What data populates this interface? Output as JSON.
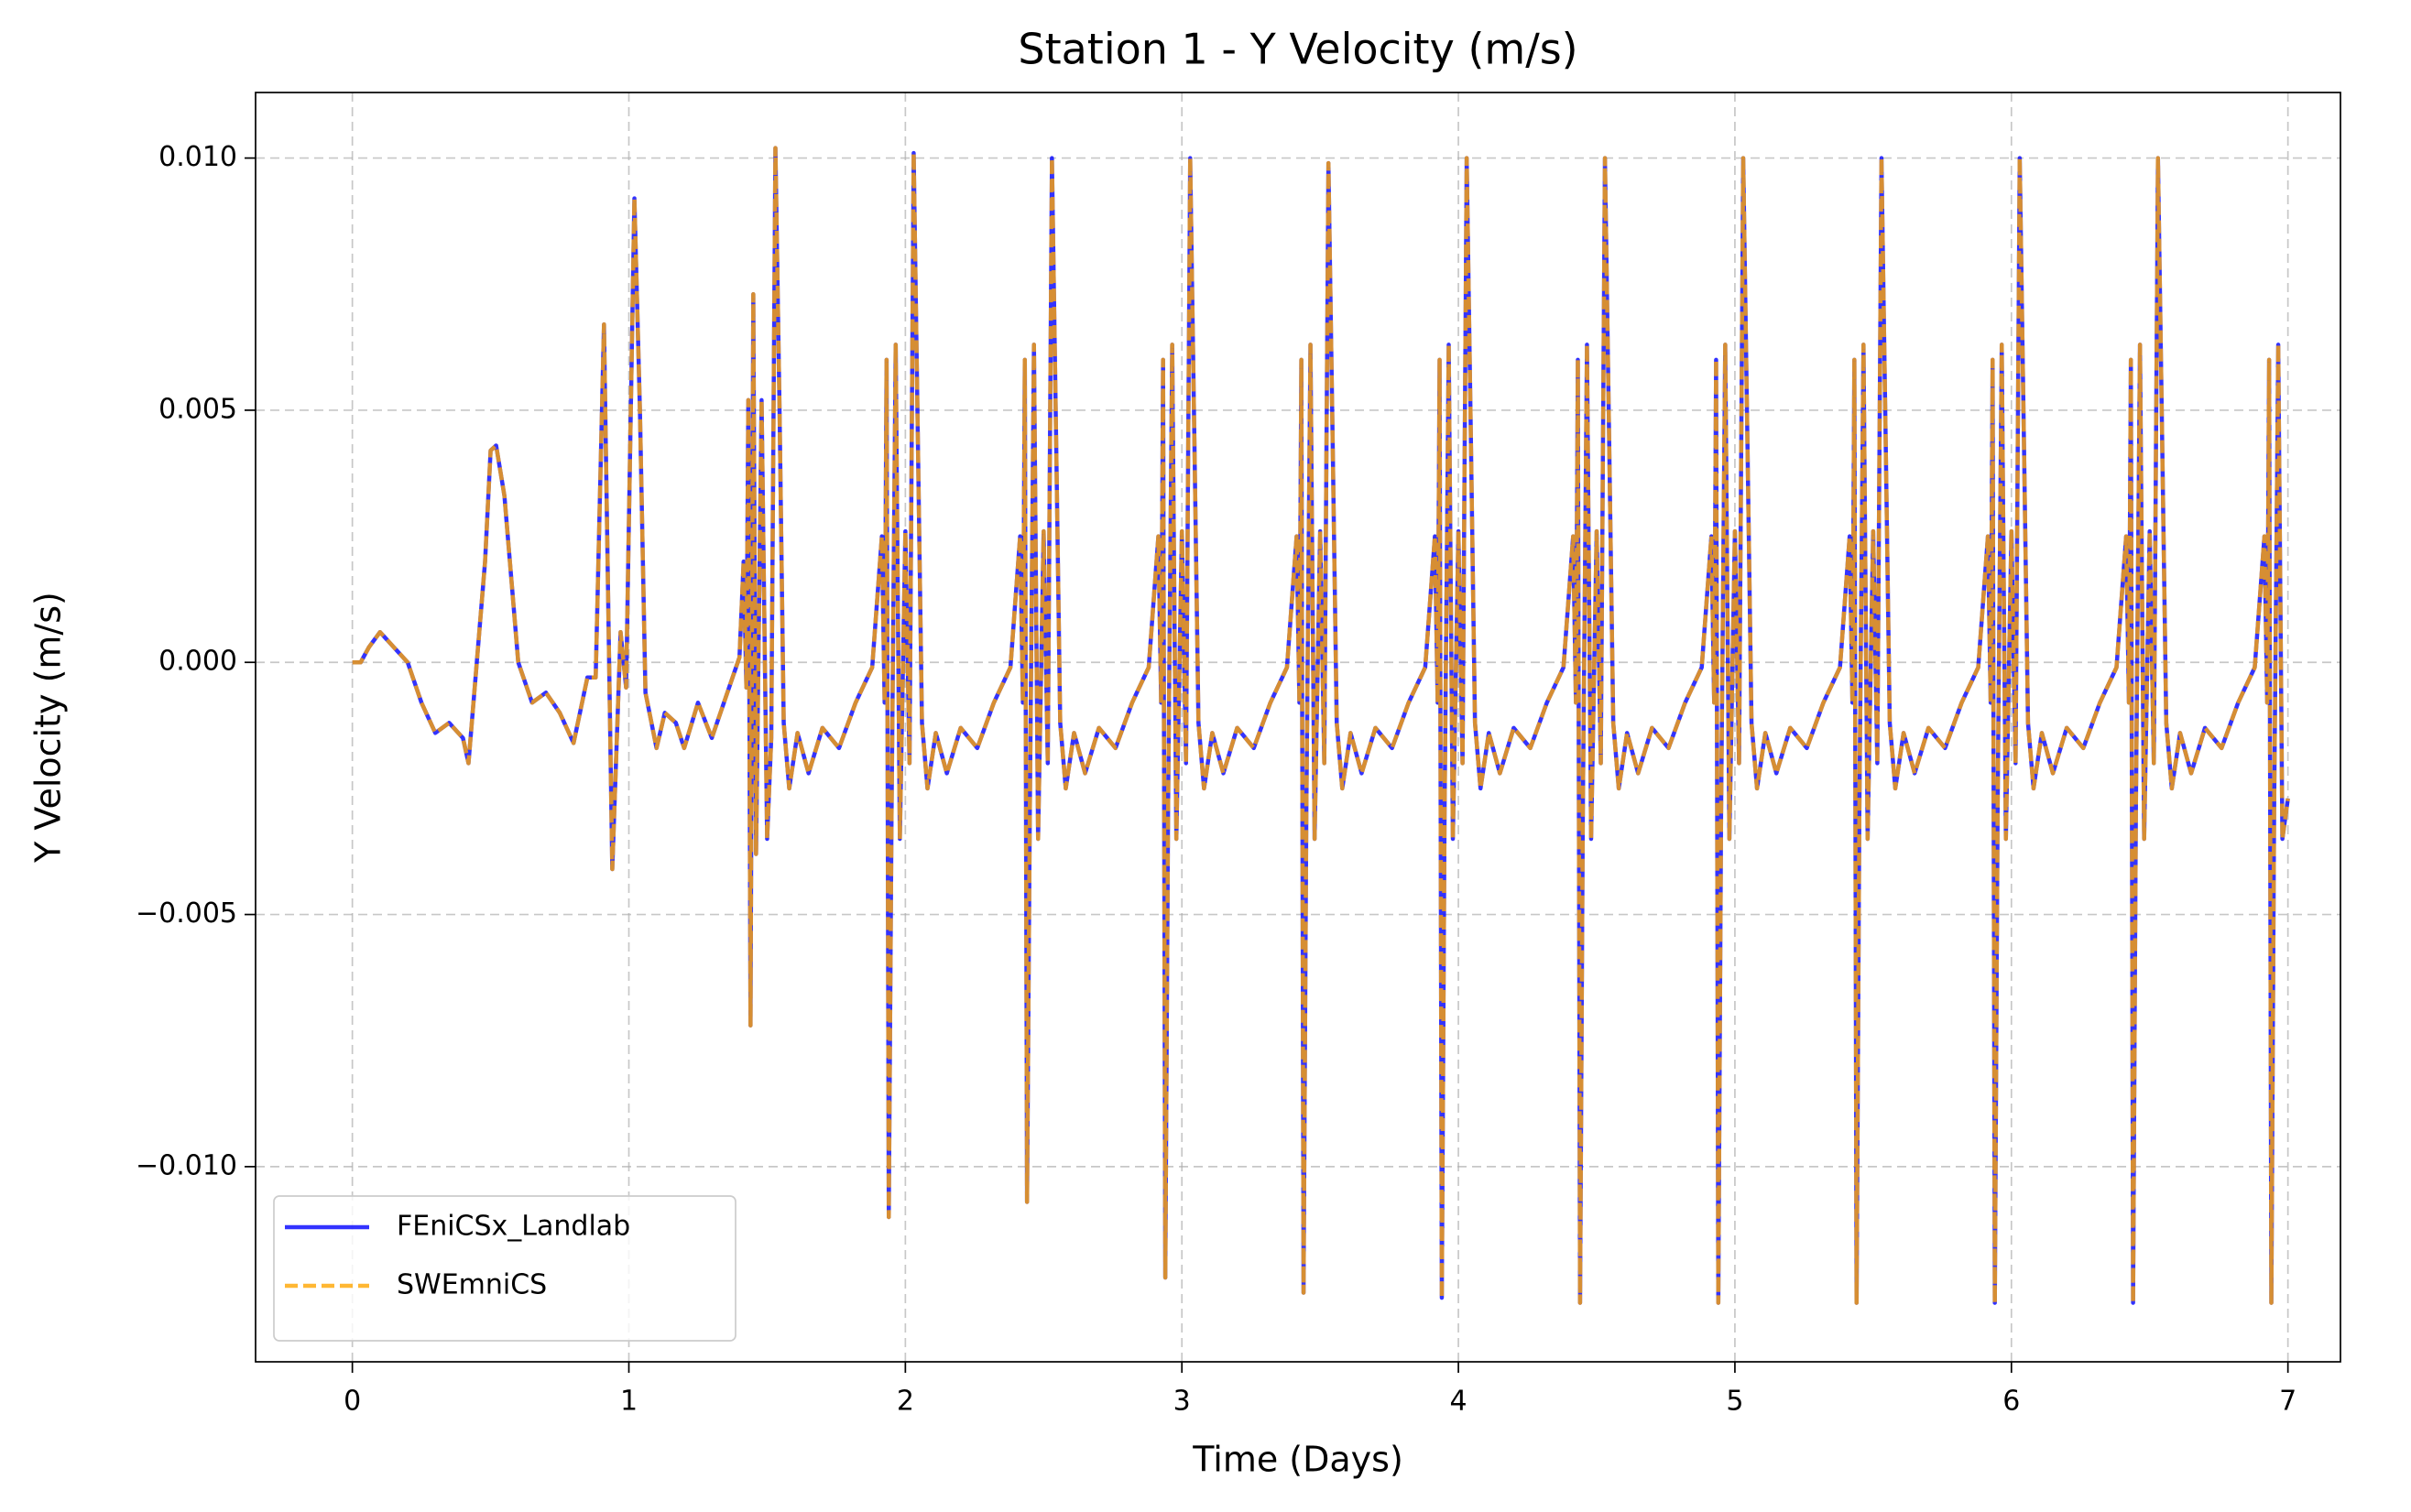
{
  "chart_data": {
    "type": "line",
    "title": "Station 1 - Y Velocity (m/s)",
    "x_label": "Time (Days)",
    "y_label": "Y Velocity (m/s)",
    "xlim": [
      -0.35,
      7.19
    ],
    "ylim": [
      -0.01387,
      0.0113
    ],
    "xticks": [
      0,
      1,
      2,
      3,
      4,
      5,
      6,
      7
    ],
    "yticks": [
      {
        "value": -0.01,
        "label": "−0.010"
      },
      {
        "value": -0.005,
        "label": "−0.005"
      },
      {
        "value": 0,
        "label": "0.000"
      },
      {
        "value": 0.005,
        "label": "0.005"
      },
      {
        "value": 0.01,
        "label": "0.010"
      }
    ],
    "grid": true,
    "legend": "lower left",
    "x": [
      0,
      0.03,
      0.06,
      0.1,
      0.15,
      0.2,
      0.25,
      0.3,
      0.35,
      0.4,
      0.42,
      0.45,
      0.48,
      0.5,
      0.52,
      0.55,
      0.6,
      0.65,
      0.7,
      0.75,
      0.8,
      0.85,
      0.88,
      0.91,
      0.94,
      0.97,
      0.99,
      1.02,
      1.04,
      1.06,
      1.1,
      1.13,
      1.17,
      1.2,
      1.25,
      1.3,
      1.35,
      1.4,
      1.415,
      1.425,
      1.432,
      1.44,
      1.45,
      1.46,
      1.48,
      1.5,
      1.515,
      1.53,
      1.545,
      1.56,
      1.58,
      1.61,
      1.65,
      1.7,
      1.76,
      1.82,
      1.88,
      1.915,
      1.925,
      1.932,
      1.94,
      1.95,
      1.965,
      1.98,
      2.0,
      2.015,
      2.03,
      2.045,
      2.06,
      2.08,
      2.11,
      2.15,
      2.2,
      2.26,
      2.32,
      2.38,
      2.415,
      2.425,
      2.432,
      2.44,
      2.45,
      2.465,
      2.48,
      2.5,
      2.515,
      2.53,
      2.545,
      2.56,
      2.58,
      2.61,
      2.65,
      2.7,
      2.76,
      2.82,
      2.88,
      2.915,
      2.925,
      2.932,
      2.94,
      2.95,
      2.965,
      2.98,
      3.0,
      3.015,
      3.03,
      3.045,
      3.06,
      3.08,
      3.11,
      3.15,
      3.2,
      3.26,
      3.32,
      3.38,
      3.415,
      3.425,
      3.432,
      3.44,
      3.45,
      3.465,
      3.48,
      3.5,
      3.515,
      3.53,
      3.545,
      3.56,
      3.58,
      3.61,
      3.65,
      3.7,
      3.76,
      3.82,
      3.88,
      3.915,
      3.925,
      3.932,
      3.94,
      3.95,
      3.965,
      3.98,
      4.0,
      4.015,
      4.03,
      4.045,
      4.06,
      4.08,
      4.11,
      4.15,
      4.2,
      4.26,
      4.32,
      4.38,
      4.415,
      4.425,
      4.432,
      4.44,
      4.45,
      4.465,
      4.48,
      4.5,
      4.515,
      4.53,
      4.545,
      4.56,
      4.58,
      4.61,
      4.65,
      4.7,
      4.76,
      4.82,
      4.88,
      4.915,
      4.925,
      4.932,
      4.94,
      4.95,
      4.965,
      4.98,
      5.0,
      5.015,
      5.03,
      5.045,
      5.06,
      5.08,
      5.11,
      5.15,
      5.2,
      5.26,
      5.32,
      5.38,
      5.415,
      5.425,
      5.432,
      5.44,
      5.45,
      5.465,
      5.48,
      5.5,
      5.515,
      5.53,
      5.545,
      5.56,
      5.58,
      5.61,
      5.65,
      5.7,
      5.76,
      5.82,
      5.88,
      5.915,
      5.925,
      5.932,
      5.94,
      5.95,
      5.965,
      5.98,
      6.0,
      6.015,
      6.03,
      6.045,
      6.06,
      6.08,
      6.11,
      6.15,
      6.2,
      6.26,
      6.32,
      6.38,
      6.415,
      6.425,
      6.432,
      6.44,
      6.45,
      6.465,
      6.48,
      6.5,
      6.515,
      6.53,
      6.545,
      6.56,
      6.58,
      6.61,
      6.65,
      6.7,
      6.76,
      6.82,
      6.88,
      6.915,
      6.925,
      6.932,
      6.94,
      6.95,
      6.965,
      6.98,
      7.0
    ],
    "series": [
      {
        "name": "FEniCSx_Landlab",
        "color": "#0000ff",
        "linestyle": "solid",
        "values": [
          0,
          0,
          0.0003,
          0.0006,
          0.0003,
          0,
          -0.0008,
          -0.0014,
          -0.0012,
          -0.0015,
          -0.002,
          0,
          0.002,
          0.0042,
          0.0043,
          0.0033,
          0,
          -0.0008,
          -0.0006,
          -0.001,
          -0.0016,
          -0.0003,
          -0.0003,
          0.0067,
          -0.0041,
          0.0006,
          -0.0005,
          0.0092,
          0.005,
          -0.0006,
          -0.0017,
          -0.001,
          -0.0012,
          -0.0017,
          -0.0008,
          -0.0015,
          -0.0007,
          0.0001,
          0.002,
          -0.0005,
          0.0052,
          -0.0072,
          0.0073,
          -0.0038,
          0.0052,
          -0.0035,
          -0.0015,
          0.0102,
          0.005,
          -0.0012,
          -0.0025,
          -0.0014,
          -0.0022,
          -0.0013,
          -0.0017,
          -0.0008,
          -0.0001,
          0.0025,
          -0.0008,
          0.006,
          -0.011,
          -0.003,
          0.0063,
          -0.0035,
          0.0026,
          -0.002,
          0.0101,
          0.0045,
          -0.0012,
          -0.0025,
          -0.0014,
          -0.0022,
          -0.0013,
          -0.0017,
          -0.0008,
          -0.0001,
          0.0025,
          -0.0008,
          0.006,
          -0.0107,
          -0.003,
          0.0063,
          -0.0035,
          0.0026,
          -0.002,
          0.01,
          0.0045,
          -0.0012,
          -0.0025,
          -0.0014,
          -0.0022,
          -0.0013,
          -0.0017,
          -0.0008,
          -0.0001,
          0.0025,
          -0.0008,
          0.006,
          -0.0122,
          -0.003,
          0.0063,
          -0.0035,
          0.0026,
          -0.002,
          0.01,
          0.0045,
          -0.0012,
          -0.0025,
          -0.0014,
          -0.0022,
          -0.0013,
          -0.0017,
          -0.0008,
          -0.0001,
          0.0025,
          -0.0008,
          0.006,
          -0.0125,
          -0.003,
          0.0063,
          -0.0035,
          0.0026,
          -0.002,
          0.0099,
          0.0045,
          -0.0012,
          -0.0025,
          -0.0014,
          -0.0022,
          -0.0013,
          -0.0017,
          -0.0008,
          -0.0001,
          0.0025,
          -0.0008,
          0.006,
          -0.0126,
          -0.003,
          0.0063,
          -0.0035,
          0.0026,
          -0.002,
          0.01,
          0.0045,
          -0.0012,
          -0.0025,
          -0.0014,
          -0.0022,
          -0.0013,
          -0.0017,
          -0.0008,
          -0.0001,
          0.0025,
          -0.0008,
          0.006,
          -0.0127,
          -0.003,
          0.0063,
          -0.0035,
          0.0026,
          -0.002,
          0.01,
          0.0045,
          -0.0012,
          -0.0025,
          -0.0014,
          -0.0022,
          -0.0013,
          -0.0017,
          -0.0008,
          -0.0001,
          0.0025,
          -0.0008,
          0.006,
          -0.0127,
          -0.003,
          0.0063,
          -0.0035,
          0.0026,
          -0.002,
          0.01,
          0.0045,
          -0.0012,
          -0.0025,
          -0.0014,
          -0.0022,
          -0.0013,
          -0.0017,
          -0.0008,
          -0.0001,
          0.0025,
          -0.0008,
          0.006,
          -0.0127,
          -0.003,
          0.0063,
          -0.0035,
          0.0026,
          -0.002,
          0.01,
          0.0045,
          -0.0012,
          -0.0025,
          -0.0014,
          -0.0022,
          -0.0013,
          -0.0017,
          -0.0008,
          -0.0001,
          0.0025,
          -0.0008,
          0.006,
          -0.0127,
          -0.003,
          0.0063,
          -0.0035,
          0.0026,
          -0.002,
          0.01,
          0.0045,
          -0.0012,
          -0.0025,
          -0.0014,
          -0.0022,
          -0.0013,
          -0.0017,
          -0.0008,
          -0.0001,
          0.0025,
          -0.0008,
          0.006,
          -0.0127,
          -0.003,
          0.0063,
          -0.0035,
          0.0026,
          -0.002,
          0.01,
          0.0045,
          -0.0012,
          -0.0025,
          -0.0014,
          -0.0022,
          -0.0013,
          -0.0017,
          -0.0008,
          -0.0001,
          0.0025,
          -0.0008,
          0.006,
          -0.0127,
          -0.003,
          0.0063,
          -0.0035,
          -0.0027
        ]
      },
      {
        "name": "SWEmniCS",
        "color": "#ffa500",
        "linestyle": "dashed",
        "values": [
          0,
          0,
          0.0003,
          0.0006,
          0.0003,
          0,
          -0.0008,
          -0.0014,
          -0.0012,
          -0.0015,
          -0.002,
          0,
          0.002,
          0.0042,
          0.0043,
          0.0033,
          0,
          -0.0008,
          -0.0006,
          -0.001,
          -0.0016,
          -0.0003,
          -0.0003,
          0.0067,
          -0.0041,
          0.0006,
          -0.0005,
          0.0092,
          0.005,
          -0.0006,
          -0.0017,
          -0.001,
          -0.0012,
          -0.0017,
          -0.0008,
          -0.0015,
          -0.0007,
          0.0001,
          0.002,
          -0.0005,
          0.0052,
          -0.0072,
          0.0073,
          -0.0038,
          0.0052,
          -0.0035,
          -0.0015,
          0.0102,
          0.005,
          -0.0012,
          -0.0025,
          -0.0014,
          -0.0022,
          -0.0013,
          -0.0017,
          -0.0008,
          -0.0001,
          0.0025,
          -0.0008,
          0.006,
          -0.011,
          -0.003,
          0.0063,
          -0.0035,
          0.0026,
          -0.002,
          0.0101,
          0.0045,
          -0.0012,
          -0.0025,
          -0.0014,
          -0.0022,
          -0.0013,
          -0.0017,
          -0.0008,
          -0.0001,
          0.0025,
          -0.0008,
          0.006,
          -0.0107,
          -0.003,
          0.0063,
          -0.0035,
          0.0026,
          -0.002,
          0.01,
          0.0045,
          -0.0012,
          -0.0025,
          -0.0014,
          -0.0022,
          -0.0013,
          -0.0017,
          -0.0008,
          -0.0001,
          0.0025,
          -0.0008,
          0.006,
          -0.0122,
          -0.003,
          0.0063,
          -0.0035,
          0.0026,
          -0.002,
          0.01,
          0.0045,
          -0.0012,
          -0.0025,
          -0.0014,
          -0.0022,
          -0.0013,
          -0.0017,
          -0.0008,
          -0.0001,
          0.0025,
          -0.0008,
          0.006,
          -0.0125,
          -0.003,
          0.0063,
          -0.0035,
          0.0026,
          -0.002,
          0.0099,
          0.0045,
          -0.0012,
          -0.0025,
          -0.0014,
          -0.0022,
          -0.0013,
          -0.0017,
          -0.0008,
          -0.0001,
          0.0025,
          -0.0008,
          0.006,
          -0.0126,
          -0.003,
          0.0063,
          -0.0035,
          0.0026,
          -0.002,
          0.01,
          0.0045,
          -0.0012,
          -0.0025,
          -0.0014,
          -0.0022,
          -0.0013,
          -0.0017,
          -0.0008,
          -0.0001,
          0.0025,
          -0.0008,
          0.006,
          -0.0127,
          -0.003,
          0.0063,
          -0.0035,
          0.0026,
          -0.002,
          0.01,
          0.0045,
          -0.0012,
          -0.0025,
          -0.0014,
          -0.0022,
          -0.0013,
          -0.0017,
          -0.0008,
          -0.0001,
          0.0025,
          -0.0008,
          0.006,
          -0.0127,
          -0.003,
          0.0063,
          -0.0035,
          0.0026,
          -0.002,
          0.01,
          0.0045,
          -0.0012,
          -0.0025,
          -0.0014,
          -0.0022,
          -0.0013,
          -0.0017,
          -0.0008,
          -0.0001,
          0.0025,
          -0.0008,
          0.006,
          -0.0127,
          -0.003,
          0.0063,
          -0.0035,
          0.0026,
          -0.002,
          0.01,
          0.0045,
          -0.0012,
          -0.0025,
          -0.0014,
          -0.0022,
          -0.0013,
          -0.0017,
          -0.0008,
          -0.0001,
          0.0025,
          -0.0008,
          0.006,
          -0.0127,
          -0.003,
          0.0063,
          -0.0035,
          0.0026,
          -0.002,
          0.01,
          0.0045,
          -0.0012,
          -0.0025,
          -0.0014,
          -0.0022,
          -0.0013,
          -0.0017,
          -0.0008,
          -0.0001,
          0.0025,
          -0.0008,
          0.006,
          -0.0127,
          -0.003,
          0.0063,
          -0.0035,
          0.0026,
          -0.002,
          0.01,
          0.0045,
          -0.0012,
          -0.0025,
          -0.0014,
          -0.0022,
          -0.0013,
          -0.0017,
          -0.0008,
          -0.0001,
          0.0025,
          -0.0008,
          0.006,
          -0.0127,
          -0.003,
          0.0063,
          -0.0035,
          -0.0027
        ]
      }
    ]
  }
}
